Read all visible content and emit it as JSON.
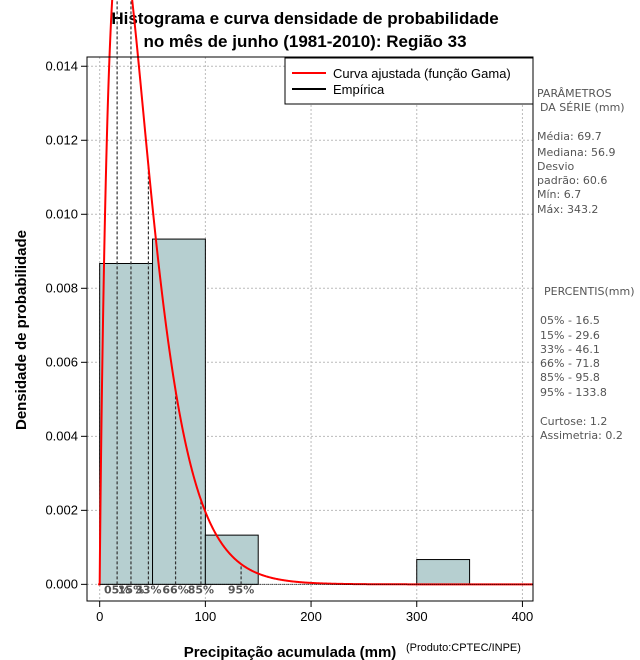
{
  "chart_data": {
    "type": "bar",
    "title_line1": "Histograma e curva densidade de probabilidade",
    "title_line2": "no mês de junho (1981-2010): Região 33",
    "xlabel": "Precipitação acumulada (mm)",
    "ylabel": "Densidade de probabilidade",
    "credit": "(Produto:CPTEC/INPE)",
    "xlim": [
      -12,
      410
    ],
    "ylim": [
      -0.00045,
      0.01425
    ],
    "xticks": [
      0,
      100,
      200,
      300,
      400
    ],
    "yticks": [
      0.0,
      0.002,
      0.004,
      0.006,
      0.008,
      0.01,
      0.012,
      0.014
    ],
    "ytick_labels": [
      "0.000",
      "0.002",
      "0.004",
      "0.006",
      "0.008",
      "0.010",
      "0.012",
      "0.014"
    ],
    "bins": [
      {
        "x0": 0,
        "x1": 50,
        "density": 0.00867
      },
      {
        "x0": 50,
        "x1": 100,
        "density": 0.00933
      },
      {
        "x0": 100,
        "x1": 150,
        "density": 0.00133
      },
      {
        "x0": 150,
        "x1": 200,
        "density": 0.0
      },
      {
        "x0": 200,
        "x1": 250,
        "density": 0.0
      },
      {
        "x0": 250,
        "x1": 300,
        "density": 0.0
      },
      {
        "x0": 300,
        "x1": 350,
        "density": 0.00067
      }
    ],
    "gamma_fit": {
      "shape": 1.9,
      "scale": 22.0,
      "x_start": -1.5,
      "x_end": 410
    },
    "percentile_markers": [
      {
        "label": "05%",
        "x": 16.5
      },
      {
        "label": "15%",
        "x": 29.6
      },
      {
        "label": "33%",
        "x": 46.1
      },
      {
        "label": "66%",
        "x": 71.8
      },
      {
        "label": "85%",
        "x": 95.8
      },
      {
        "label": "95%",
        "x": 133.8
      }
    ],
    "legend": {
      "position": "top-right",
      "entries": [
        {
          "label": "Curva ajustada (função Gama)",
          "color": "#ff0000"
        },
        {
          "label": "Empírica",
          "color": "#000000"
        }
      ]
    },
    "colors": {
      "bar_fill": "#b6cfd0",
      "bar_stroke": "#000000",
      "curve": "#ff0000",
      "grid": "#bbbbbb"
    }
  },
  "sidebar": {
    "params_title": [
      "PARÂMETROS",
      "DA SÉRIE (mm)"
    ],
    "params": [
      "Média:  69.7",
      "Mediana:  56.9",
      "Desvio",
      "padrão:  60.6",
      "Mín:  6.7",
      "Máx:  343.2"
    ],
    "percentis_title": "PERCENTIS(mm)",
    "percentis": [
      "05% -  16.5",
      "15% -  29.6",
      "33% -  46.1",
      "66% -  71.8",
      "85% -  95.8",
      "95% -  133.8"
    ],
    "extra": [
      "Curtose:  1.2",
      "Assimetria:  0.2"
    ]
  }
}
